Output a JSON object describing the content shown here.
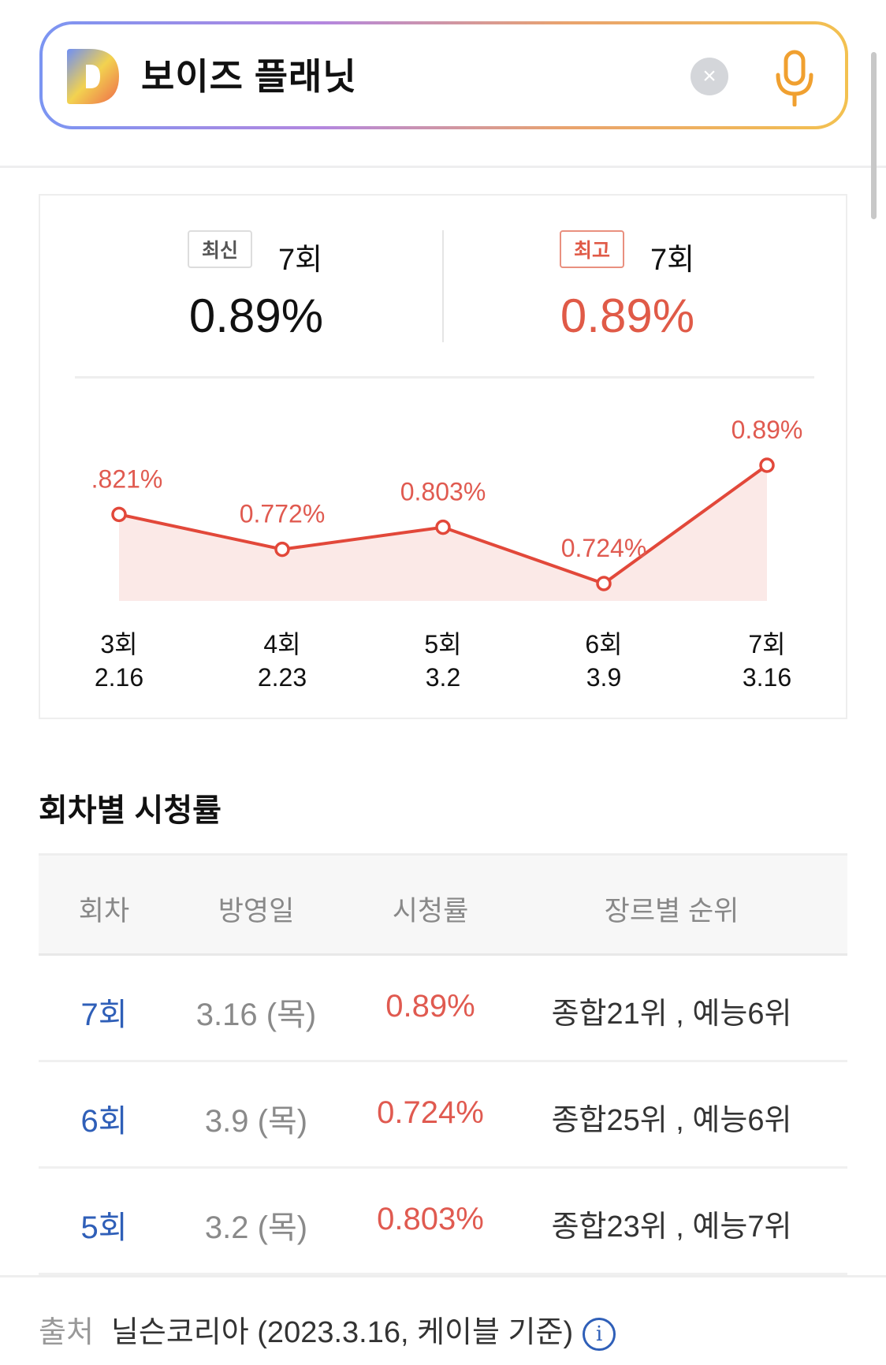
{
  "search": {
    "query": "보이즈 플래닛",
    "clear_icon": "close-icon",
    "mic_icon": "microphone-icon"
  },
  "summary": {
    "latest": {
      "badge": "최신",
      "episode": "7회",
      "rating": "0.89%"
    },
    "best": {
      "badge": "최고",
      "episode": "7회",
      "rating": "0.89%"
    }
  },
  "colors": {
    "accent_red": "#e05a47",
    "link_blue": "#2f5fb8"
  },
  "chart_data": {
    "type": "area",
    "categories": [
      "3회",
      "4회",
      "5회",
      "6회",
      "7회"
    ],
    "dates": [
      "2.16",
      "2.23",
      "3.2",
      "3.9",
      "3.16"
    ],
    "values": [
      0.821,
      0.772,
      0.803,
      0.724,
      0.89
    ],
    "labels": [
      ".821%",
      "0.772%",
      "0.803%",
      "0.724%",
      "0.89%"
    ],
    "unit": "%",
    "grid": false
  },
  "table": {
    "title": "회차별 시청률",
    "headers": [
      "회차",
      "방영일",
      "시청률",
      "장르별 순위"
    ],
    "rows": [
      {
        "episode": "7회",
        "date": "3.16 (목)",
        "rating": "0.89%",
        "rank": "종합21위 , 예능6위"
      },
      {
        "episode": "6회",
        "date": "3.9 (목)",
        "rating": "0.724%",
        "rank": "종합25위 , 예능6위"
      },
      {
        "episode": "5회",
        "date": "3.2 (목)",
        "rating": "0.803%",
        "rank": "종합23위 , 예능7위"
      }
    ]
  },
  "source": {
    "label": "출처",
    "text": "닐슨코리아 (2023.3.16, 케이블 기준)",
    "info_icon": "info-icon"
  }
}
